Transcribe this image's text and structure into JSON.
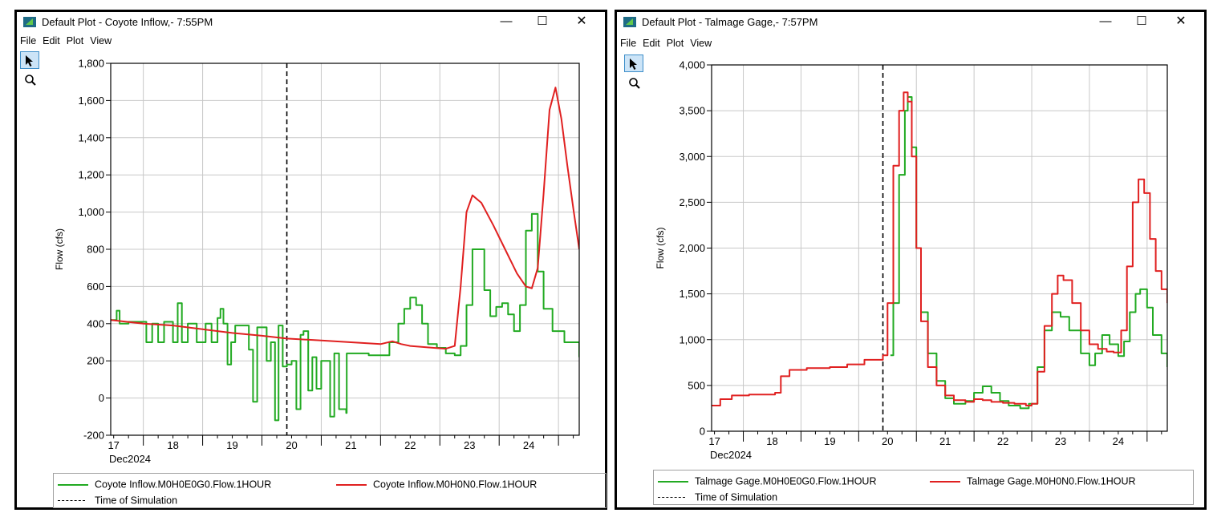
{
  "windows": [
    {
      "title": "Default Plot - Coyote Inflow,- 7:55PM",
      "menu": [
        "File",
        "Edit",
        "Plot",
        "View"
      ],
      "window_buttons": {
        "minimize": "—",
        "maximize": "☐",
        "close": "✕"
      },
      "legend": [
        {
          "label": "Coyote Inflow.M0H0E0G0.Flow.1HOUR",
          "color": "#22aa22",
          "style": "solid"
        },
        {
          "label": "Coyote Inflow.M0H0N0.Flow.1HOUR",
          "color": "#e02020",
          "style": "solid"
        },
        {
          "label": "Time of Simulation",
          "color": "#000000",
          "style": "dashed"
        }
      ]
    },
    {
      "title": "Default Plot - Talmage Gage,- 7:57PM",
      "menu": [
        "File",
        "Edit",
        "Plot",
        "View"
      ],
      "window_buttons": {
        "minimize": "—",
        "maximize": "☐",
        "close": "✕"
      },
      "legend": [
        {
          "label": "Talmage Gage.M0H0E0G0.Flow.1HOUR",
          "color": "#22aa22",
          "style": "solid"
        },
        {
          "label": "Talmage Gage.M0H0N0.Flow.1HOUR",
          "color": "#e02020",
          "style": "solid"
        },
        {
          "label": "Time of Simulation",
          "color": "#000000",
          "style": "dashed"
        }
      ]
    }
  ],
  "chart_data": [
    {
      "type": "line",
      "ylabel": "Flow (cfs)",
      "xlabel": "Dec2024",
      "ylim": [
        -200,
        1800
      ],
      "yticks": [
        -200,
        0,
        200,
        400,
        600,
        800,
        1000,
        1200,
        1400,
        1600,
        1800
      ],
      "ytick_labels": [
        "-200",
        "0",
        "200",
        "400",
        "600",
        "800",
        "1,000",
        "1,200",
        "1,400",
        "1,600",
        "1,800"
      ],
      "xlim": [
        16.95,
        24.85
      ],
      "xtick_labels": [
        {
          "x": 17,
          "label": "17"
        },
        {
          "x": 18,
          "label": "18"
        },
        {
          "x": 19,
          "label": "19"
        },
        {
          "x": 20,
          "label": "20"
        },
        {
          "x": 21,
          "label": "21"
        },
        {
          "x": 22,
          "label": "22"
        },
        {
          "x": 23,
          "label": "23"
        },
        {
          "x": 24,
          "label": "24"
        }
      ],
      "x_major_gridlines": [
        17.5,
        18.5,
        19.5,
        20.5,
        21.5,
        22.5,
        23.5,
        24.5
      ],
      "time_of_simulation": 19.92,
      "grid": true,
      "legend_position": "bottom",
      "series": [
        {
          "name": "Coyote Inflow.M0H0E0G0.Flow.1HOUR",
          "color": "#22aa22",
          "step": true,
          "points": [
            [
              16.95,
              420
            ],
            [
              17.05,
              470
            ],
            [
              17.1,
              400
            ],
            [
              17.25,
              410
            ],
            [
              17.5,
              410
            ],
            [
              17.55,
              300
            ],
            [
              17.65,
              400
            ],
            [
              17.75,
              300
            ],
            [
              17.85,
              410
            ],
            [
              17.95,
              410
            ],
            [
              18.0,
              300
            ],
            [
              18.08,
              510
            ],
            [
              18.15,
              300
            ],
            [
              18.25,
              400
            ],
            [
              18.4,
              300
            ],
            [
              18.55,
              400
            ],
            [
              18.65,
              300
            ],
            [
              18.75,
              430
            ],
            [
              18.8,
              480
            ],
            [
              18.85,
              400
            ],
            [
              18.92,
              180
            ],
            [
              18.98,
              300
            ],
            [
              19.05,
              390
            ],
            [
              19.2,
              390
            ],
            [
              19.28,
              260
            ],
            [
              19.35,
              -20
            ],
            [
              19.42,
              380
            ],
            [
              19.5,
              380
            ],
            [
              19.58,
              200
            ],
            [
              19.65,
              300
            ],
            [
              19.72,
              -120
            ],
            [
              19.78,
              390
            ],
            [
              19.85,
              170
            ],
            [
              19.92,
              180
            ],
            [
              20.0,
              200
            ],
            [
              20.08,
              -60
            ],
            [
              20.15,
              340
            ],
            [
              20.2,
              360
            ],
            [
              20.28,
              40
            ],
            [
              20.35,
              220
            ],
            [
              20.42,
              50
            ],
            [
              20.5,
              200
            ],
            [
              20.58,
              200
            ],
            [
              20.65,
              -100
            ],
            [
              20.72,
              240
            ],
            [
              20.8,
              -60
            ],
            [
              20.92,
              -80
            ],
            [
              20.93,
              240
            ],
            [
              21.3,
              230
            ],
            [
              21.5,
              230
            ],
            [
              21.65,
              300
            ],
            [
              21.8,
              400
            ],
            [
              21.9,
              480
            ],
            [
              22.0,
              540
            ],
            [
              22.1,
              500
            ],
            [
              22.2,
              400
            ],
            [
              22.3,
              290
            ],
            [
              22.45,
              270
            ],
            [
              22.6,
              240
            ],
            [
              22.75,
              230
            ],
            [
              22.85,
              280
            ],
            [
              22.95,
              500
            ],
            [
              23.05,
              800
            ],
            [
              23.15,
              800
            ],
            [
              23.25,
              580
            ],
            [
              23.35,
              440
            ],
            [
              23.45,
              490
            ],
            [
              23.55,
              510
            ],
            [
              23.65,
              450
            ],
            [
              23.75,
              360
            ],
            [
              23.85,
              500
            ],
            [
              23.95,
              900
            ],
            [
              24.05,
              990
            ],
            [
              24.15,
              680
            ],
            [
              24.25,
              480
            ],
            [
              24.4,
              360
            ],
            [
              24.6,
              300
            ],
            [
              24.85,
              220
            ]
          ]
        },
        {
          "name": "Coyote Inflow.M0H0N0.Flow.1HOUR",
          "color": "#e02020",
          "step": false,
          "points": [
            [
              16.95,
              420
            ],
            [
              17.5,
              400
            ],
            [
              18.0,
              390
            ],
            [
              18.5,
              370
            ],
            [
              19.0,
              350
            ],
            [
              19.5,
              335
            ],
            [
              19.92,
              320
            ],
            [
              20.5,
              310
            ],
            [
              21.0,
              300
            ],
            [
              21.5,
              290
            ],
            [
              21.7,
              305
            ],
            [
              21.85,
              290
            ],
            [
              22.0,
              280
            ],
            [
              22.4,
              270
            ],
            [
              22.6,
              265
            ],
            [
              22.75,
              280
            ],
            [
              22.85,
              600
            ],
            [
              22.95,
              1000
            ],
            [
              23.05,
              1090
            ],
            [
              23.2,
              1050
            ],
            [
              23.4,
              930
            ],
            [
              23.6,
              800
            ],
            [
              23.8,
              670
            ],
            [
              23.95,
              600
            ],
            [
              24.05,
              590
            ],
            [
              24.15,
              700
            ],
            [
              24.25,
              1100
            ],
            [
              24.35,
              1550
            ],
            [
              24.45,
              1670
            ],
            [
              24.55,
              1500
            ],
            [
              24.65,
              1250
            ],
            [
              24.75,
              1020
            ],
            [
              24.85,
              800
            ]
          ]
        }
      ]
    },
    {
      "type": "line",
      "ylabel": "Flow (cfs)",
      "xlabel": "Dec2024",
      "ylim": [
        0,
        4000
      ],
      "yticks": [
        0,
        500,
        1000,
        1500,
        2000,
        2500,
        3000,
        3500,
        4000
      ],
      "ytick_labels": [
        "0",
        "500",
        "1,000",
        "1,500",
        "2,000",
        "2,500",
        "3,000",
        "3,500",
        "4,000"
      ],
      "xlim": [
        16.95,
        24.85
      ],
      "xtick_labels": [
        {
          "x": 17,
          "label": "17"
        },
        {
          "x": 18,
          "label": "18"
        },
        {
          "x": 19,
          "label": "19"
        },
        {
          "x": 20,
          "label": "20"
        },
        {
          "x": 21,
          "label": "21"
        },
        {
          "x": 22,
          "label": "22"
        },
        {
          "x": 23,
          "label": "23"
        },
        {
          "x": 24,
          "label": "24"
        }
      ],
      "x_major_gridlines": [
        17.5,
        18.5,
        19.5,
        20.5,
        21.5,
        22.5,
        23.5,
        24.5
      ],
      "time_of_simulation": 19.92,
      "grid": true,
      "legend_position": "bottom",
      "series": [
        {
          "name": "Talmage Gage.M0H0E0G0.Flow.1HOUR",
          "color": "#22aa22",
          "step": true,
          "points": [
            [
              20.05,
              830
            ],
            [
              20.1,
              1400
            ],
            [
              20.2,
              2800
            ],
            [
              20.3,
              3500
            ],
            [
              20.35,
              3650
            ],
            [
              20.42,
              3100
            ],
            [
              20.5,
              2000
            ],
            [
              20.58,
              1300
            ],
            [
              20.7,
              850
            ],
            [
              20.85,
              550
            ],
            [
              21.0,
              360
            ],
            [
              21.15,
              300
            ],
            [
              21.35,
              330
            ],
            [
              21.5,
              420
            ],
            [
              21.65,
              490
            ],
            [
              21.8,
              420
            ],
            [
              21.95,
              330
            ],
            [
              22.1,
              280
            ],
            [
              22.3,
              250
            ],
            [
              22.45,
              300
            ],
            [
              22.6,
              700
            ],
            [
              22.72,
              1100
            ],
            [
              22.85,
              1300
            ],
            [
              23.0,
              1250
            ],
            [
              23.15,
              1100
            ],
            [
              23.35,
              850
            ],
            [
              23.5,
              720
            ],
            [
              23.6,
              850
            ],
            [
              23.72,
              1050
            ],
            [
              23.85,
              950
            ],
            [
              24.0,
              820
            ],
            [
              24.1,
              980
            ],
            [
              24.2,
              1300
            ],
            [
              24.3,
              1500
            ],
            [
              24.38,
              1550
            ],
            [
              24.5,
              1350
            ],
            [
              24.6,
              1050
            ],
            [
              24.75,
              850
            ],
            [
              24.85,
              700
            ]
          ]
        },
        {
          "name": "Talmage Gage.M0H0N0.Flow.1HOUR",
          "color": "#e02020",
          "step": true,
          "points": [
            [
              16.95,
              280
            ],
            [
              17.1,
              350
            ],
            [
              17.3,
              390
            ],
            [
              17.6,
              400
            ],
            [
              17.9,
              400
            ],
            [
              18.05,
              420
            ],
            [
              18.15,
              600
            ],
            [
              18.3,
              670
            ],
            [
              18.6,
              690
            ],
            [
              19.0,
              700
            ],
            [
              19.3,
              730
            ],
            [
              19.6,
              780
            ],
            [
              19.92,
              830
            ],
            [
              20.0,
              1400
            ],
            [
              20.1,
              2900
            ],
            [
              20.2,
              3500
            ],
            [
              20.28,
              3700
            ],
            [
              20.35,
              3600
            ],
            [
              20.42,
              3000
            ],
            [
              20.5,
              2000
            ],
            [
              20.58,
              1200
            ],
            [
              20.7,
              700
            ],
            [
              20.85,
              500
            ],
            [
              21.0,
              390
            ],
            [
              21.15,
              340
            ],
            [
              21.35,
              320
            ],
            [
              21.5,
              350
            ],
            [
              21.65,
              340
            ],
            [
              21.8,
              320
            ],
            [
              22.0,
              310
            ],
            [
              22.2,
              300
            ],
            [
              22.4,
              280
            ],
            [
              22.5,
              300
            ],
            [
              22.6,
              650
            ],
            [
              22.72,
              1150
            ],
            [
              22.85,
              1500
            ],
            [
              22.95,
              1700
            ],
            [
              23.05,
              1650
            ],
            [
              23.2,
              1400
            ],
            [
              23.35,
              1100
            ],
            [
              23.5,
              950
            ],
            [
              23.65,
              900
            ],
            [
              23.8,
              870
            ],
            [
              23.92,
              860
            ],
            [
              24.05,
              1100
            ],
            [
              24.15,
              1800
            ],
            [
              24.25,
              2500
            ],
            [
              24.35,
              2750
            ],
            [
              24.45,
              2600
            ],
            [
              24.55,
              2100
            ],
            [
              24.65,
              1750
            ],
            [
              24.75,
              1550
            ],
            [
              24.85,
              1400
            ]
          ]
        }
      ]
    }
  ]
}
